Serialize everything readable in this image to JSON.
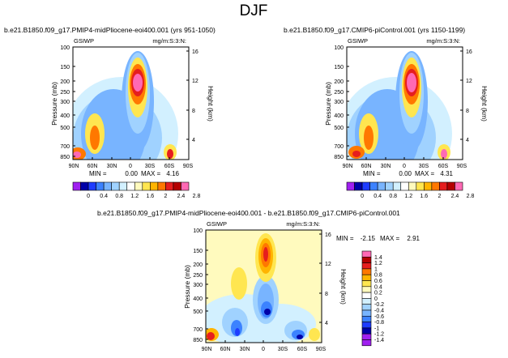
{
  "page_title": "DJF",
  "colors": {
    "purple": "#a020f0",
    "blue_dark": "#0000a8",
    "blue": "#1e3cff",
    "blue_mid": "#3c82ff",
    "blue_light": "#78b4ff",
    "cyan": "#a0d2ff",
    "pale": "#d2f0ff",
    "white": "#ffffff",
    "yellow_light": "#fffabe",
    "yellow": "#ffe650",
    "orange_light": "#ffb400",
    "orange": "#ff7800",
    "red": "#e61e1e",
    "red_dark": "#b40000",
    "pink": "#ff69b4"
  },
  "chart_data": [
    {
      "type": "heatmap",
      "title": "b.e21.B1850.f09_g17.PMIP4-midPliocene-eoi400.001 (yrs 951-1050)",
      "left_label": "GSIWP",
      "right_label": "mg/m:S:3:N:",
      "ylabel": "Pressure (mb)",
      "ylabel_right": "Height (km)",
      "x_ticks": [
        "90N",
        "60N",
        "30N",
        "0",
        "30S",
        "60S",
        "90S"
      ],
      "y_ticks": [
        "100",
        "150",
        "200",
        "250",
        "300",
        "400",
        "500",
        "700",
        "850"
      ],
      "height_ticks": [
        "16",
        "12",
        "8",
        "4"
      ],
      "stats": {
        "min_label": "MIN =",
        "min": "0.00",
        "max_label": "MAX =",
        "max": "4.16"
      },
      "colorbar_labels": [
        "0",
        "0.4",
        "0.8",
        "1.2",
        "1.6",
        "2",
        "2.4",
        "2.8"
      ],
      "features": [
        {
          "lat": 5,
          "plev": 200,
          "value": 4.16
        },
        {
          "lat": 50,
          "plev": 500,
          "value": 1.8
        },
        {
          "lat": 80,
          "plev": 850,
          "value": 2.0
        },
        {
          "lat": -60,
          "plev": 850,
          "value": 1.6
        }
      ]
    },
    {
      "type": "heatmap",
      "title": "b.e21.B1850.f09_g17.CMIP6-piControl.001 (yrs 1150-1199)",
      "left_label": "GSIWP",
      "right_label": "mg/m:S:3:N:",
      "ylabel": "Pressure (mb)",
      "ylabel_right": "Height (km)",
      "x_ticks": [
        "90N",
        "60N",
        "30N",
        "0",
        "30S",
        "60S",
        "90S"
      ],
      "y_ticks": [
        "100",
        "150",
        "200",
        "250",
        "300",
        "400",
        "500",
        "700",
        "850"
      ],
      "height_ticks": [
        "16",
        "12",
        "8",
        "4"
      ],
      "stats": {
        "min_label": "MIN =",
        "min": "0.00",
        "max_label": "MAX =",
        "max": "4.31"
      },
      "colorbar_labels": [
        "0",
        "0.4",
        "0.8",
        "1.2",
        "1.6",
        "2",
        "2.4",
        "2.8"
      ],
      "features": [
        {
          "lat": 5,
          "plev": 200,
          "value": 4.31
        },
        {
          "lat": 50,
          "plev": 500,
          "value": 1.8
        },
        {
          "lat": 80,
          "plev": 850,
          "value": 1.7
        },
        {
          "lat": -60,
          "plev": 850,
          "value": 1.8
        }
      ]
    },
    {
      "type": "heatmap",
      "title": "b.e21.B1850.f09_g17.PMIP4-midPliocene-eoi400.001 - b.e21.B1850.f09_g17.CMIP6-piControl.001",
      "left_label": "GSIWP",
      "right_label": "mg/m:S:3:N:",
      "ylabel": "Pressure (mb)",
      "ylabel_right": "Height (km)",
      "x_ticks": [
        "90N",
        "60N",
        "30N",
        "0",
        "30S",
        "60S",
        "90S"
      ],
      "y_ticks": [
        "100",
        "150",
        "200",
        "250",
        "300",
        "400",
        "500",
        "700",
        "850"
      ],
      "height_ticks": [
        "16",
        "12",
        "8",
        "4"
      ],
      "stats": {
        "min_label": "MIN =",
        "min": "-2.15",
        "max_label": "MAX =",
        "max": "2.91"
      },
      "colorbar_labels": [
        "1.4",
        "1.2",
        "1",
        "0.8",
        "0.6",
        "0.4",
        "0.2",
        "0",
        "-0.2",
        "-0.4",
        "-0.6",
        "-0.8",
        "-1",
        "-1.2",
        "-1.4"
      ],
      "features": [
        {
          "lat": 5,
          "plev": 180,
          "value": 1.4
        },
        {
          "lat": 5,
          "plev": 500,
          "value": -1.2
        },
        {
          "lat": 85,
          "plev": 850,
          "value": 1.2
        },
        {
          "lat": -60,
          "plev": 850,
          "value": -1.4
        }
      ]
    }
  ]
}
